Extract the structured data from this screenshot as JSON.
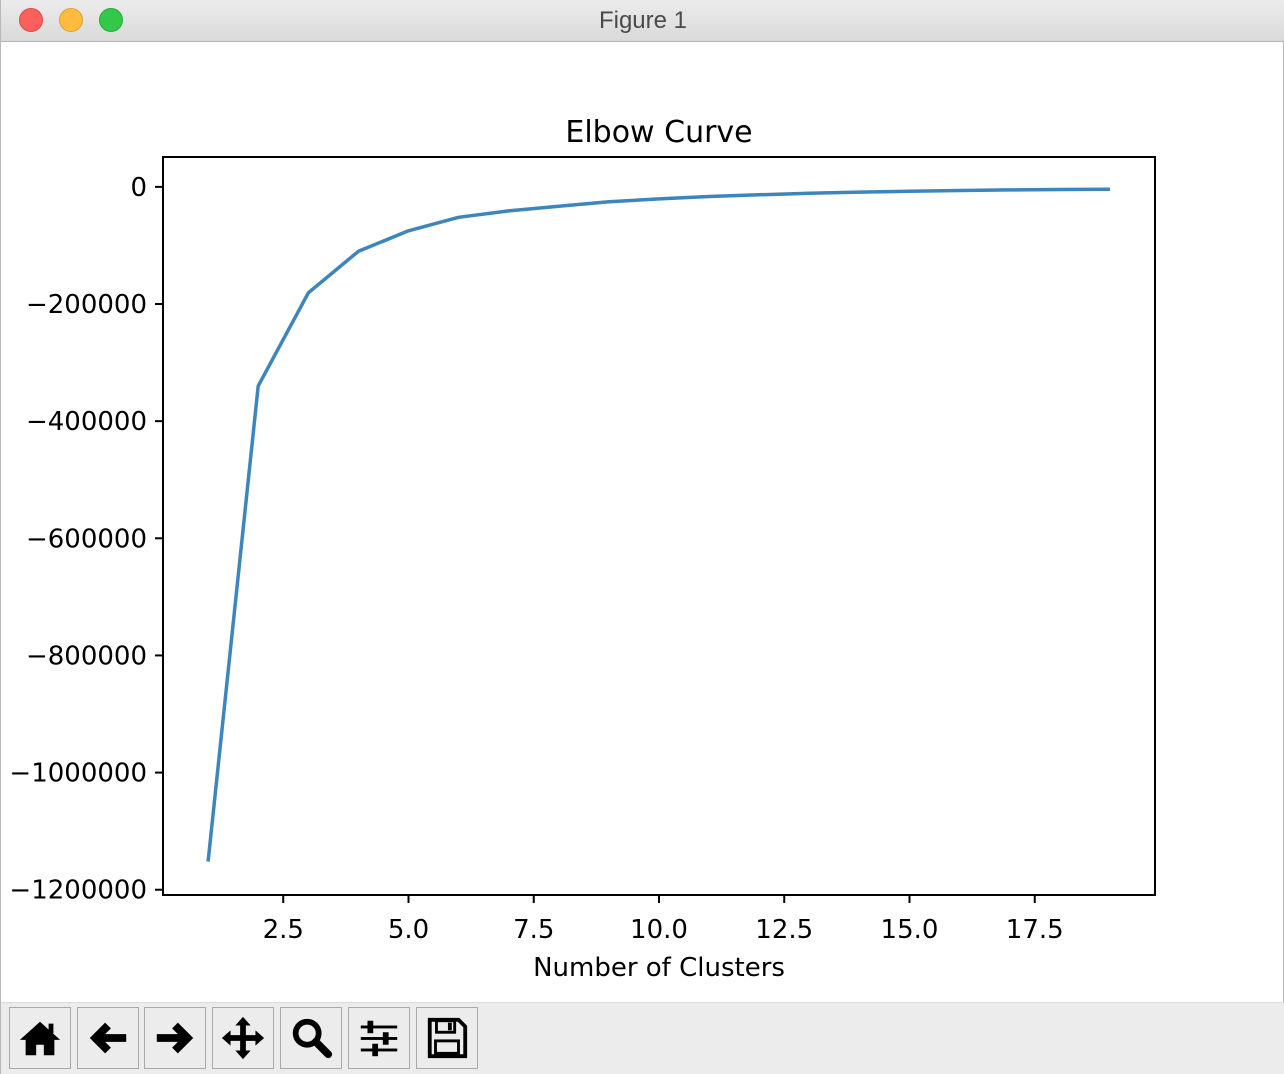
{
  "window": {
    "title": "Figure 1"
  },
  "toolbar": {
    "buttons": [
      {
        "name": "home-button",
        "icon": "home-icon"
      },
      {
        "name": "back-button",
        "icon": "arrow-left-icon"
      },
      {
        "name": "forward-button",
        "icon": "arrow-right-icon"
      },
      {
        "name": "pan-button",
        "icon": "move-icon"
      },
      {
        "name": "zoom-button",
        "icon": "magnifier-icon"
      },
      {
        "name": "configure-subplots-button",
        "icon": "sliders-icon"
      },
      {
        "name": "save-button",
        "icon": "floppy-disk-icon"
      }
    ]
  },
  "chart_data": {
    "type": "line",
    "title": "Elbow Curve",
    "xlabel": "Number of Clusters",
    "ylabel": "",
    "x": [
      1,
      2,
      3,
      4,
      5,
      6,
      7,
      8,
      9,
      10,
      11,
      12,
      13,
      14,
      15,
      16,
      17,
      18,
      19
    ],
    "series": [
      {
        "color": "#3d85bb",
        "values": [
          -1152000,
          -340000,
          -181000,
          -110000,
          -75000,
          -52000,
          -41000,
          -33000,
          -25500,
          -20500,
          -16500,
          -13500,
          -11000,
          -9000,
          -7500,
          -6200,
          -5200,
          -4500,
          -4000
        ]
      }
    ],
    "xlim": [
      0.1,
      19.9
    ],
    "ylim": [
      -1209000,
      51000
    ],
    "xticks": [
      2.5,
      5.0,
      7.5,
      10.0,
      12.5,
      15.0,
      17.5
    ],
    "xtick_labels": [
      "2.5",
      "5.0",
      "7.5",
      "10.0",
      "12.5",
      "15.0",
      "17.5"
    ],
    "yticks": [
      0,
      -200000,
      -400000,
      -600000,
      -800000,
      -1000000,
      -1200000
    ],
    "ytick_labels": [
      "0",
      "−200000",
      "−400000",
      "−600000",
      "−800000",
      "−1000000",
      "−1200000"
    ],
    "grid": false,
    "legend": "none"
  }
}
